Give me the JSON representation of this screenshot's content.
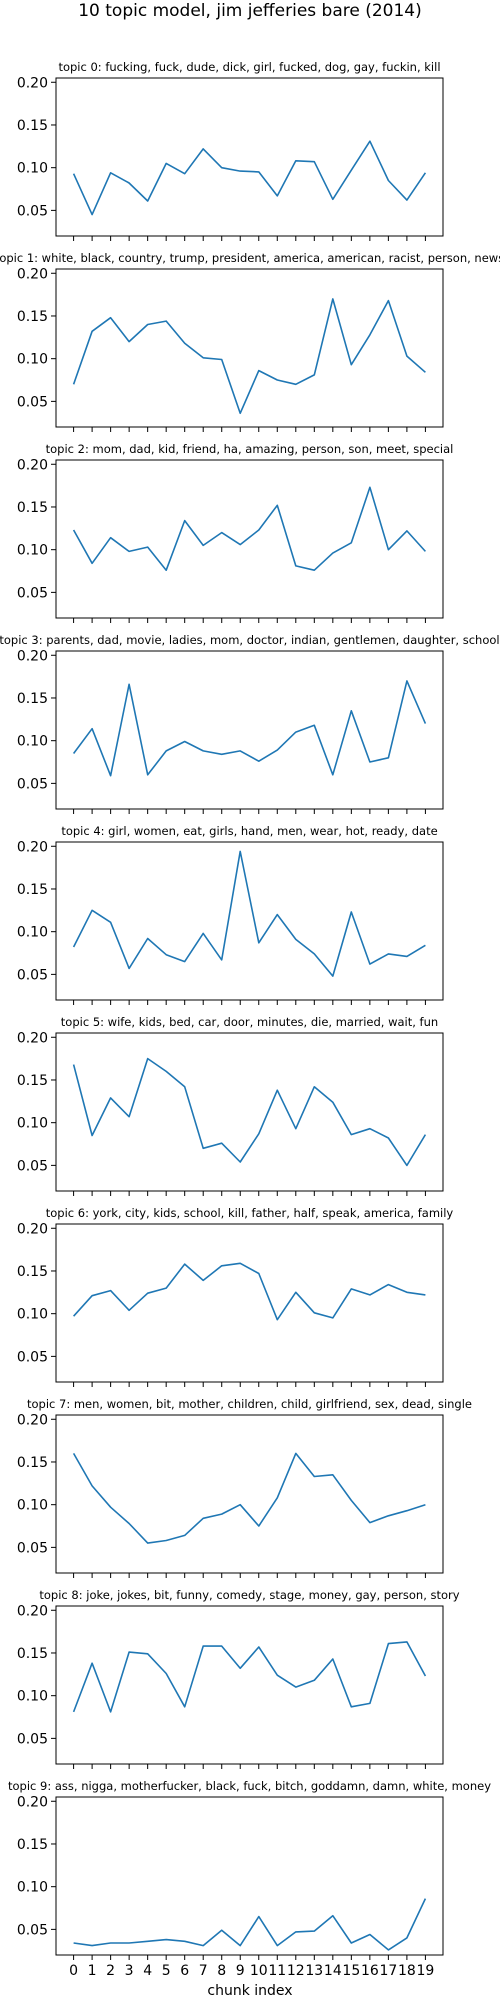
{
  "figure": {
    "suptitle": "10 topic model, jim jefferies bare (2014)",
    "xlabel": "chunk index"
  },
  "style": {
    "line_color": "#1f77b4",
    "axis_color": "#000000"
  },
  "chart_data": [
    {
      "type": "line",
      "title": "topic 0: fucking, fuck, dude, dick, girl, fucked, dog, gay, fuckin, kill",
      "x": [
        0,
        1,
        2,
        3,
        4,
        5,
        6,
        7,
        8,
        9,
        10,
        11,
        12,
        13,
        14,
        15,
        16,
        17,
        18,
        19
      ],
      "y": [
        0.093,
        0.045,
        0.094,
        0.082,
        0.061,
        0.105,
        0.093,
        0.122,
        0.1,
        0.096,
        0.095,
        0.067,
        0.108,
        0.107,
        0.063,
        0.097,
        0.131,
        0.085,
        0.062,
        0.094
      ],
      "ylim": [
        0.02,
        0.205
      ],
      "yticks": [
        0.05,
        0.1,
        0.15,
        0.2
      ],
      "xlabel": "",
      "ylabel": ""
    },
    {
      "type": "line",
      "title": "topic 1: white, black, country, trump, president, america, american, racist, person, news",
      "x": [
        0,
        1,
        2,
        3,
        4,
        5,
        6,
        7,
        8,
        9,
        10,
        11,
        12,
        13,
        14,
        15,
        16,
        17,
        18,
        19
      ],
      "y": [
        0.07,
        0.132,
        0.148,
        0.12,
        0.14,
        0.144,
        0.118,
        0.101,
        0.099,
        0.036,
        0.086,
        0.075,
        0.07,
        0.081,
        0.17,
        0.093,
        0.128,
        0.168,
        0.103,
        0.084
      ],
      "ylim": [
        0.02,
        0.205
      ],
      "yticks": [
        0.05,
        0.1,
        0.15,
        0.2
      ],
      "xlabel": "",
      "ylabel": ""
    },
    {
      "type": "line",
      "title": "topic 2: mom, dad, kid, friend, ha, amazing, person, son, meet, special",
      "x": [
        0,
        1,
        2,
        3,
        4,
        5,
        6,
        7,
        8,
        9,
        10,
        11,
        12,
        13,
        14,
        15,
        16,
        17,
        18,
        19
      ],
      "y": [
        0.123,
        0.084,
        0.114,
        0.098,
        0.103,
        0.076,
        0.134,
        0.105,
        0.12,
        0.106,
        0.123,
        0.152,
        0.081,
        0.076,
        0.096,
        0.108,
        0.173,
        0.1,
        0.122,
        0.098
      ],
      "ylim": [
        0.02,
        0.205
      ],
      "yticks": [
        0.05,
        0.1,
        0.15,
        0.2
      ],
      "xlabel": "",
      "ylabel": ""
    },
    {
      "type": "line",
      "title": "topic 3: parents, dad, movie, ladies, mom, doctor, indian, gentlemen, daughter, school",
      "x": [
        0,
        1,
        2,
        3,
        4,
        5,
        6,
        7,
        8,
        9,
        10,
        11,
        12,
        13,
        14,
        15,
        16,
        17,
        18,
        19
      ],
      "y": [
        0.085,
        0.114,
        0.059,
        0.166,
        0.06,
        0.088,
        0.099,
        0.088,
        0.084,
        0.088,
        0.076,
        0.089,
        0.11,
        0.118,
        0.06,
        0.135,
        0.075,
        0.08,
        0.17,
        0.12
      ],
      "ylim": [
        0.02,
        0.205
      ],
      "yticks": [
        0.05,
        0.1,
        0.15,
        0.2
      ],
      "xlabel": "",
      "ylabel": ""
    },
    {
      "type": "line",
      "title": "topic 4: girl, women, eat, girls, hand, men, wear, hot, ready, date",
      "x": [
        0,
        1,
        2,
        3,
        4,
        5,
        6,
        7,
        8,
        9,
        10,
        11,
        12,
        13,
        14,
        15,
        16,
        17,
        18,
        19
      ],
      "y": [
        0.082,
        0.125,
        0.111,
        0.057,
        0.092,
        0.073,
        0.065,
        0.098,
        0.067,
        0.194,
        0.087,
        0.12,
        0.091,
        0.074,
        0.048,
        0.123,
        0.062,
        0.074,
        0.071,
        0.084
      ],
      "ylim": [
        0.02,
        0.205
      ],
      "yticks": [
        0.05,
        0.1,
        0.15,
        0.2
      ],
      "xlabel": "",
      "ylabel": ""
    },
    {
      "type": "line",
      "title": "topic 5: wife, kids, bed, car, door, minutes, die, married, wait, fun",
      "x": [
        0,
        1,
        2,
        3,
        4,
        5,
        6,
        7,
        8,
        9,
        10,
        11,
        12,
        13,
        14,
        15,
        16,
        17,
        18,
        19
      ],
      "y": [
        0.168,
        0.085,
        0.129,
        0.107,
        0.175,
        0.16,
        0.142,
        0.07,
        0.076,
        0.054,
        0.087,
        0.138,
        0.093,
        0.142,
        0.124,
        0.086,
        0.093,
        0.082,
        0.05,
        0.086
      ],
      "ylim": [
        0.02,
        0.205
      ],
      "yticks": [
        0.05,
        0.1,
        0.15,
        0.2
      ],
      "xlabel": "",
      "ylabel": ""
    },
    {
      "type": "line",
      "title": "topic 6: york, city, kids, school, kill, father, half, speak, america, family",
      "x": [
        0,
        1,
        2,
        3,
        4,
        5,
        6,
        7,
        8,
        9,
        10,
        11,
        12,
        13,
        14,
        15,
        16,
        17,
        18,
        19
      ],
      "y": [
        0.097,
        0.121,
        0.127,
        0.104,
        0.124,
        0.13,
        0.158,
        0.139,
        0.156,
        0.159,
        0.147,
        0.093,
        0.125,
        0.101,
        0.095,
        0.129,
        0.122,
        0.134,
        0.125,
        0.122
      ],
      "ylim": [
        0.02,
        0.205
      ],
      "yticks": [
        0.05,
        0.1,
        0.15,
        0.2
      ],
      "xlabel": "",
      "ylabel": ""
    },
    {
      "type": "line",
      "title": "topic 7: men, women, bit, mother, children, child, girlfriend, sex, dead, single",
      "x": [
        0,
        1,
        2,
        3,
        4,
        5,
        6,
        7,
        8,
        9,
        10,
        11,
        12,
        13,
        14,
        15,
        16,
        17,
        18,
        19
      ],
      "y": [
        0.16,
        0.122,
        0.097,
        0.078,
        0.055,
        0.058,
        0.064,
        0.084,
        0.089,
        0.1,
        0.075,
        0.108,
        0.16,
        0.133,
        0.135,
        0.105,
        0.079,
        0.087,
        0.093,
        0.1
      ],
      "ylim": [
        0.02,
        0.205
      ],
      "yticks": [
        0.05,
        0.1,
        0.15,
        0.2
      ],
      "xlabel": "",
      "ylabel": ""
    },
    {
      "type": "line",
      "title": "topic 8: joke, jokes, bit, funny, comedy, stage, money, gay, person, story",
      "x": [
        0,
        1,
        2,
        3,
        4,
        5,
        6,
        7,
        8,
        9,
        10,
        11,
        12,
        13,
        14,
        15,
        16,
        17,
        18,
        19
      ],
      "y": [
        0.081,
        0.138,
        0.081,
        0.151,
        0.149,
        0.126,
        0.087,
        0.158,
        0.158,
        0.132,
        0.157,
        0.124,
        0.11,
        0.118,
        0.143,
        0.087,
        0.091,
        0.161,
        0.163,
        0.123
      ],
      "ylim": [
        0.02,
        0.205
      ],
      "yticks": [
        0.05,
        0.1,
        0.15,
        0.2
      ],
      "xlabel": "",
      "ylabel": ""
    },
    {
      "type": "line",
      "title": "topic 9: ass, nigga, motherfucker, black, fuck, bitch, goddamn, damn, white, money",
      "x": [
        0,
        1,
        2,
        3,
        4,
        5,
        6,
        7,
        8,
        9,
        10,
        11,
        12,
        13,
        14,
        15,
        16,
        17,
        18,
        19
      ],
      "y": [
        0.034,
        0.031,
        0.034,
        0.034,
        0.036,
        0.038,
        0.036,
        0.031,
        0.049,
        0.031,
        0.065,
        0.031,
        0.047,
        0.048,
        0.066,
        0.034,
        0.044,
        0.026,
        0.04,
        0.086
      ],
      "ylim": [
        0.02,
        0.205
      ],
      "yticks": [
        0.05,
        0.1,
        0.15,
        0.2
      ],
      "xlabel": "",
      "ylabel": ""
    }
  ]
}
